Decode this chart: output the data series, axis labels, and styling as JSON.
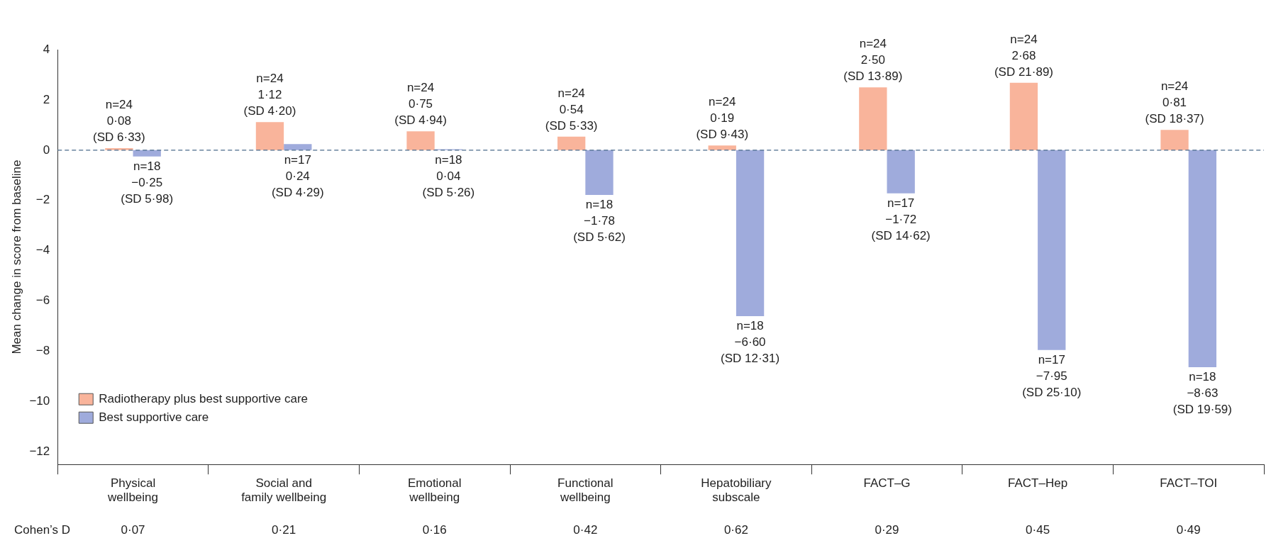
{
  "chart_data": {
    "type": "bar",
    "ylabel": "Mean change in score from baseline",
    "categories": [
      "Physical wellbeing",
      "Social and family wellbeing",
      "Emotional wellbeing",
      "Functional wellbeing",
      "Hepatobiliary subscale",
      "FACT–G",
      "FACT–Hep",
      "FACT–TOI"
    ],
    "series": [
      {
        "name": "Radiotherapy plus best supportive care",
        "color": "#f9b49b",
        "values": [
          0.08,
          1.12,
          0.75,
          0.54,
          0.19,
          2.5,
          2.68,
          0.81
        ],
        "value_labels": [
          "n=24\n0·08\n(SD 6·33)",
          "n=24\n1·12\n(SD 4·20)",
          "n=24\n0·75\n(SD 4·94)",
          "n=24\n0·54\n(SD 5·33)",
          "n=24\n0·19\n(SD 9·43)",
          "n=24\n2·50\n(SD 13·89)",
          "n=24\n2·68\n(SD 21·89)",
          "n=24\n0·81\n(SD 18·37)"
        ]
      },
      {
        "name": "Best supportive care",
        "color": "#9fabdc",
        "values": [
          -0.25,
          0.24,
          0.04,
          -1.78,
          -6.6,
          -1.72,
          -7.95,
          -8.63
        ],
        "value_labels": [
          "n=18\n−0·25\n(SD 5·98)",
          "n=17\n0·24\n(SD 4·29)",
          "n=18\n0·04\n(SD 5·26)",
          "n=18\n−1·78\n(SD 5·62)",
          "n=18\n−6·60\n(SD 12·31)",
          "n=17\n−1·72\n(SD 14·62)",
          "n=17\n−7·95\n(SD 25·10)",
          "n=18\n−8·63\n(SD 19·59)"
        ]
      }
    ],
    "ylim": [
      -12.5,
      4
    ],
    "yticks": [
      -12,
      -10,
      -8,
      -6,
      -4,
      -2,
      0,
      2,
      4
    ],
    "ref_lines": [
      {
        "axis": "y",
        "value": 0,
        "line_style": "dashed",
        "color": "#4a6a8a"
      }
    ],
    "legend": "bottom left",
    "grid": false,
    "annotations": [
      "Cohen’s D",
      "0·07",
      "0·21",
      "0·16",
      "0·42",
      "0·62",
      "0·29",
      "0·45",
      "0·49"
    ]
  }
}
